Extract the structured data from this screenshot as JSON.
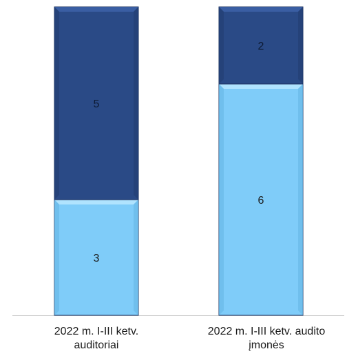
{
  "chart_data": {
    "type": "bar",
    "stacked": true,
    "categories": [
      [
        "2022 m. I-III ketv.",
        "auditoriai"
      ],
      [
        "2022 m. I-III ketv. audito",
        "įmonės"
      ]
    ],
    "series": [
      {
        "values": [
          3,
          6
        ],
        "color": "#7fccf9"
      },
      {
        "values": [
          5,
          2
        ],
        "color": "#2a4a86"
      }
    ],
    "ylim": [
      0,
      8
    ],
    "grid": false,
    "legend": "none"
  },
  "colors": {
    "bar_edge": "#1a2f5e",
    "light_fill": "#7fccf9",
    "dark_fill": "#2a4a86",
    "axis": "#c8c8c8"
  }
}
